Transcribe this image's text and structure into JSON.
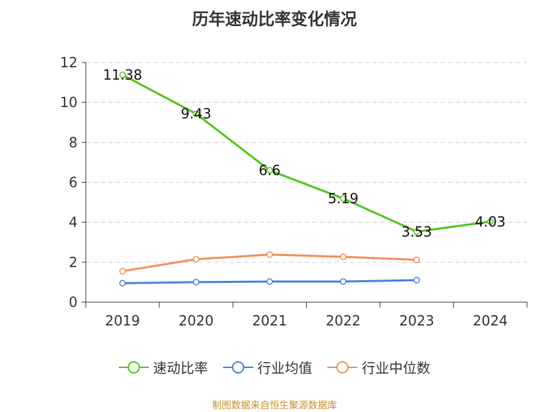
{
  "title": "历年速动比率变化情况",
  "source": "制图数据来自恒生聚源数据库",
  "chart_data": {
    "type": "line",
    "categories": [
      "2019",
      "2020",
      "2021",
      "2022",
      "2023",
      "2024"
    ],
    "ylim": [
      0,
      12
    ],
    "yticks": [
      0,
      2,
      4,
      6,
      8,
      10,
      12
    ],
    "grid": true,
    "legend_position": "bottom",
    "series": [
      {
        "name": "速动比率",
        "color": "#52c41a",
        "values": [
          11.38,
          9.43,
          6.6,
          5.19,
          3.53,
          4.03
        ],
        "labels": [
          "11.38",
          "9.43",
          "6.6",
          "5.19",
          "3.53",
          "4.03"
        ],
        "show_labels": true
      },
      {
        "name": "行业均值",
        "color": "#4a7fdc",
        "values": [
          0.95,
          1.0,
          1.03,
          1.03,
          1.1,
          null
        ],
        "show_labels": false
      },
      {
        "name": "行业中位数",
        "color": "#f28e5a",
        "values": [
          1.55,
          2.15,
          2.38,
          2.27,
          2.12,
          null
        ],
        "show_labels": false
      }
    ]
  }
}
